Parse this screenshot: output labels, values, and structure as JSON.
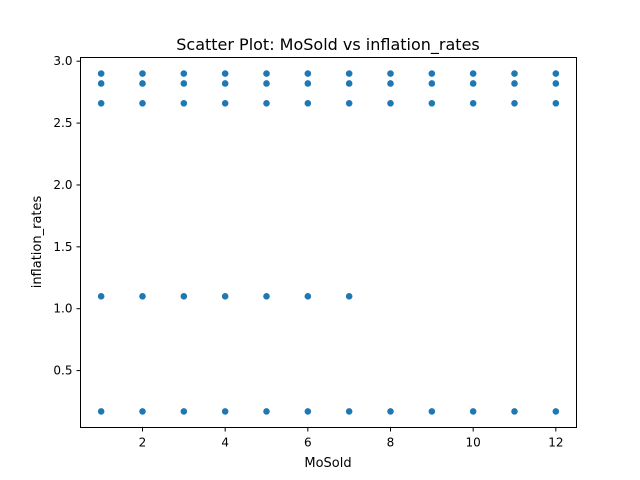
{
  "chart_data": {
    "type": "scatter",
    "title": "Scatter Plot: MoSold vs inflation_rates",
    "xlabel": "MoSold",
    "ylabel": "inflation_rates",
    "xlim": [
      0.5,
      12.5
    ],
    "ylim": [
      0.04,
      3.03
    ],
    "xticks": [
      2,
      4,
      6,
      8,
      10,
      12
    ],
    "xtick_labels": [
      "2",
      "4",
      "6",
      "8",
      "10",
      "12"
    ],
    "yticks": [
      0.5,
      1.0,
      1.5,
      2.0,
      2.5,
      3.0
    ],
    "ytick_labels": [
      "0.5",
      "1.0",
      "1.5",
      "2.0",
      "2.5",
      "3.0"
    ],
    "grid": false,
    "color": "#1f77b4",
    "points": [
      {
        "x": 1,
        "y": 2.9
      },
      {
        "x": 1,
        "y": 2.82
      },
      {
        "x": 1,
        "y": 2.66
      },
      {
        "x": 1,
        "y": 1.1
      },
      {
        "x": 1,
        "y": 0.17
      },
      {
        "x": 2,
        "y": 2.9
      },
      {
        "x": 2,
        "y": 2.82
      },
      {
        "x": 2,
        "y": 2.66
      },
      {
        "x": 2,
        "y": 1.1
      },
      {
        "x": 2,
        "y": 0.17
      },
      {
        "x": 3,
        "y": 2.9
      },
      {
        "x": 3,
        "y": 2.82
      },
      {
        "x": 3,
        "y": 2.66
      },
      {
        "x": 3,
        "y": 1.1
      },
      {
        "x": 3,
        "y": 0.17
      },
      {
        "x": 4,
        "y": 2.9
      },
      {
        "x": 4,
        "y": 2.82
      },
      {
        "x": 4,
        "y": 2.66
      },
      {
        "x": 4,
        "y": 1.1
      },
      {
        "x": 4,
        "y": 0.17
      },
      {
        "x": 5,
        "y": 2.9
      },
      {
        "x": 5,
        "y": 2.82
      },
      {
        "x": 5,
        "y": 2.66
      },
      {
        "x": 5,
        "y": 1.1
      },
      {
        "x": 5,
        "y": 0.17
      },
      {
        "x": 6,
        "y": 2.9
      },
      {
        "x": 6,
        "y": 2.82
      },
      {
        "x": 6,
        "y": 2.66
      },
      {
        "x": 6,
        "y": 1.1
      },
      {
        "x": 6,
        "y": 0.17
      },
      {
        "x": 7,
        "y": 2.9
      },
      {
        "x": 7,
        "y": 2.82
      },
      {
        "x": 7,
        "y": 2.66
      },
      {
        "x": 7,
        "y": 1.1
      },
      {
        "x": 7,
        "y": 0.17
      },
      {
        "x": 8,
        "y": 2.9
      },
      {
        "x": 8,
        "y": 2.82
      },
      {
        "x": 8,
        "y": 2.66
      },
      {
        "x": 8,
        "y": 0.17
      },
      {
        "x": 9,
        "y": 2.9
      },
      {
        "x": 9,
        "y": 2.82
      },
      {
        "x": 9,
        "y": 2.66
      },
      {
        "x": 9,
        "y": 0.17
      },
      {
        "x": 10,
        "y": 2.9
      },
      {
        "x": 10,
        "y": 2.82
      },
      {
        "x": 10,
        "y": 2.66
      },
      {
        "x": 10,
        "y": 0.17
      },
      {
        "x": 11,
        "y": 2.9
      },
      {
        "x": 11,
        "y": 2.82
      },
      {
        "x": 11,
        "y": 2.66
      },
      {
        "x": 11,
        "y": 0.17
      },
      {
        "x": 12,
        "y": 2.9
      },
      {
        "x": 12,
        "y": 2.82
      },
      {
        "x": 12,
        "y": 2.66
      },
      {
        "x": 12,
        "y": 0.17
      }
    ]
  }
}
